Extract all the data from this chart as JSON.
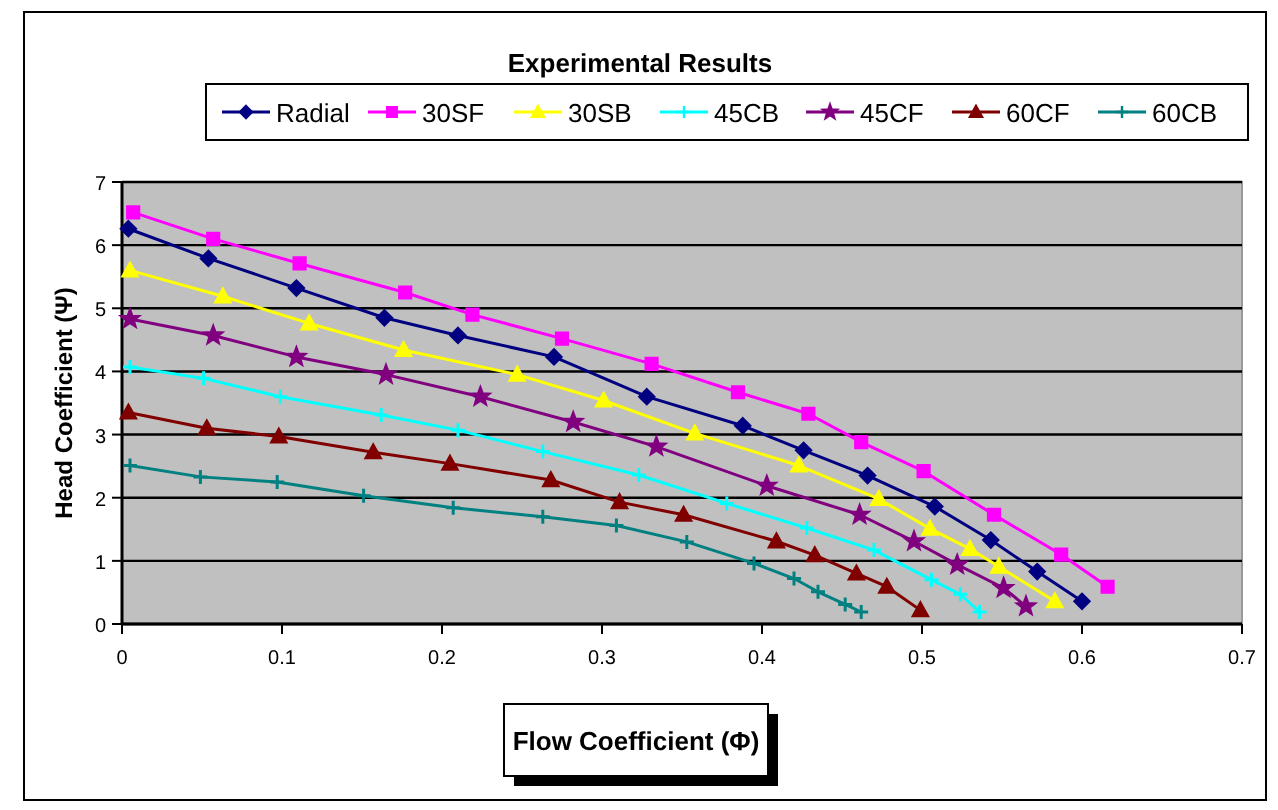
{
  "chart_data": {
    "type": "line",
    "title": "Experimental Results",
    "xlabel": "Flow  Coefficient (Φ)",
    "ylabel": "Head  Coefficient  (Ψ)",
    "xlim": [
      0,
      0.7
    ],
    "xticks": [
      0,
      0.1,
      0.2,
      0.3,
      0.4,
      0.5,
      0.6,
      0.7
    ],
    "ylim": [
      0,
      7
    ],
    "yticks": [
      0,
      1,
      2,
      3,
      4,
      5,
      6,
      7
    ],
    "grid": "y",
    "legend": "top",
    "series": [
      {
        "name": "Radial",
        "color": "#000080",
        "marker": "diamond",
        "x": [
          0.004,
          0.054,
          0.109,
          0.164,
          0.21,
          0.27,
          0.328,
          0.388,
          0.426,
          0.466,
          0.508,
          0.543,
          0.572,
          0.6
        ],
        "values": [
          6.26,
          5.79,
          5.32,
          4.85,
          4.57,
          4.23,
          3.6,
          3.14,
          2.75,
          2.35,
          1.86,
          1.33,
          0.83,
          0.36
        ]
      },
      {
        "name": "30SF",
        "color": "#ff00ff",
        "marker": "square",
        "x": [
          0.007,
          0.057,
          0.111,
          0.177,
          0.219,
          0.275,
          0.331,
          0.385,
          0.429,
          0.462,
          0.501,
          0.545,
          0.587,
          0.616
        ],
        "values": [
          6.52,
          6.1,
          5.71,
          5.25,
          4.9,
          4.52,
          4.12,
          3.67,
          3.33,
          2.88,
          2.42,
          1.73,
          1.1,
          0.59
        ]
      },
      {
        "name": "30SB",
        "color": "#ffff00",
        "marker": "triangle",
        "x": [
          0.005,
          0.063,
          0.117,
          0.176,
          0.247,
          0.301,
          0.358,
          0.423,
          0.473,
          0.505,
          0.53,
          0.548,
          0.583
        ],
        "values": [
          5.6,
          5.19,
          4.76,
          4.34,
          3.95,
          3.54,
          3.02,
          2.51,
          1.98,
          1.51,
          1.19,
          0.91,
          0.36
        ]
      },
      {
        "name": "45CB",
        "color": "#00ffff",
        "marker": "cross",
        "x": [
          0.005,
          0.051,
          0.099,
          0.162,
          0.21,
          0.263,
          0.323,
          0.378,
          0.428,
          0.47,
          0.506,
          0.524,
          0.536
        ],
        "values": [
          4.07,
          3.89,
          3.6,
          3.31,
          3.07,
          2.73,
          2.36,
          1.91,
          1.52,
          1.17,
          0.7,
          0.47,
          0.19
        ]
      },
      {
        "name": "45CF",
        "color": "#800080",
        "marker": "star",
        "x": [
          0.005,
          0.057,
          0.109,
          0.165,
          0.224,
          0.282,
          0.334,
          0.403,
          0.461,
          0.495,
          0.522,
          0.551,
          0.565
        ],
        "values": [
          4.83,
          4.57,
          4.23,
          3.95,
          3.6,
          3.2,
          2.81,
          2.19,
          1.73,
          1.31,
          0.94,
          0.57,
          0.28
        ]
      },
      {
        "name": "60CF",
        "color": "#800000",
        "marker": "triangle",
        "x": [
          0.004,
          0.053,
          0.098,
          0.157,
          0.205,
          0.268,
          0.311,
          0.351,
          0.409,
          0.433,
          0.459,
          0.478,
          0.499
        ],
        "values": [
          3.35,
          3.1,
          2.97,
          2.72,
          2.54,
          2.28,
          1.93,
          1.73,
          1.31,
          1.09,
          0.8,
          0.59,
          0.22
        ]
      },
      {
        "name": "60CB",
        "color": "#008080",
        "marker": "cross",
        "x": [
          0.005,
          0.049,
          0.097,
          0.151,
          0.207,
          0.263,
          0.309,
          0.353,
          0.395,
          0.42,
          0.435,
          0.452,
          0.462
        ],
        "values": [
          2.51,
          2.33,
          2.25,
          2.03,
          1.84,
          1.7,
          1.56,
          1.3,
          0.96,
          0.72,
          0.51,
          0.31,
          0.19
        ]
      }
    ]
  }
}
